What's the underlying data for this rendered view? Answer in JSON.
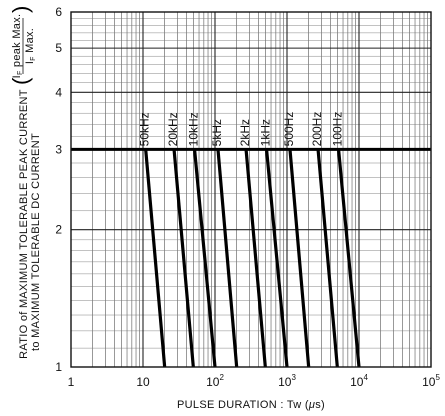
{
  "chart_data": {
    "type": "line",
    "x_scale": "log",
    "y_scale": "log",
    "xlim": [
      1,
      100000
    ],
    "ylim": [
      1,
      6
    ],
    "x_ticks": [
      {
        "value": 1,
        "label": "1"
      },
      {
        "value": 10,
        "label": "10"
      },
      {
        "value": 100,
        "label": "10",
        "exp": "2"
      },
      {
        "value": 1000,
        "label": "10",
        "exp": "3"
      },
      {
        "value": 10000,
        "label": "10",
        "exp": "4"
      },
      {
        "value": 100000,
        "label": "10",
        "exp": "5"
      }
    ],
    "y_ticks": [
      {
        "value": 1,
        "label": "1"
      },
      {
        "value": 2,
        "label": "2"
      },
      {
        "value": 3,
        "label": "3"
      },
      {
        "value": 4,
        "label": "4"
      },
      {
        "value": 5,
        "label": "5"
      },
      {
        "value": 6,
        "label": "6"
      }
    ],
    "xlabel": {
      "prefix": "PULSE DURATION : Tw (",
      "mu": "μ",
      "suffix": "s)"
    },
    "ylabel": {
      "line1": "RATIO of MAXIMUM TOLERABLE PEAK CURRENT",
      "line2": "to MAXIMUM TOLERABLE DC CURRENT",
      "fraction_num": "I",
      "fraction_num_sub": "F",
      "fraction_num_suffix": " peak Max.",
      "fraction_den": "I",
      "fraction_den_sub": "F",
      "fraction_den_suffix": " Max."
    },
    "reference_line": {
      "y": 3
    },
    "grid": true,
    "series": [
      {
        "name": "50kHz",
        "x": [
          10.9,
          20
        ],
        "y": [
          3,
          1
        ]
      },
      {
        "name": "20kHz",
        "x": [
          27,
          50
        ],
        "y": [
          3,
          1
        ]
      },
      {
        "name": "10kHz",
        "x": [
          52,
          100
        ],
        "y": [
          3,
          1
        ]
      },
      {
        "name": "5kHz",
        "x": [
          110,
          200
        ],
        "y": [
          3,
          1
        ]
      },
      {
        "name": "2kHz",
        "x": [
          270,
          500
        ],
        "y": [
          3,
          1
        ]
      },
      {
        "name": "1kHz",
        "x": [
          520,
          1000
        ],
        "y": [
          3,
          1
        ]
      },
      {
        "name": "500Hz",
        "x": [
          1100,
          2000
        ],
        "y": [
          3,
          1
        ]
      },
      {
        "name": "200Hz",
        "x": [
          2700,
          5000
        ],
        "y": [
          3,
          1
        ]
      },
      {
        "name": "100Hz",
        "x": [
          5200,
          10000
        ],
        "y": [
          3,
          1
        ]
      }
    ]
  }
}
